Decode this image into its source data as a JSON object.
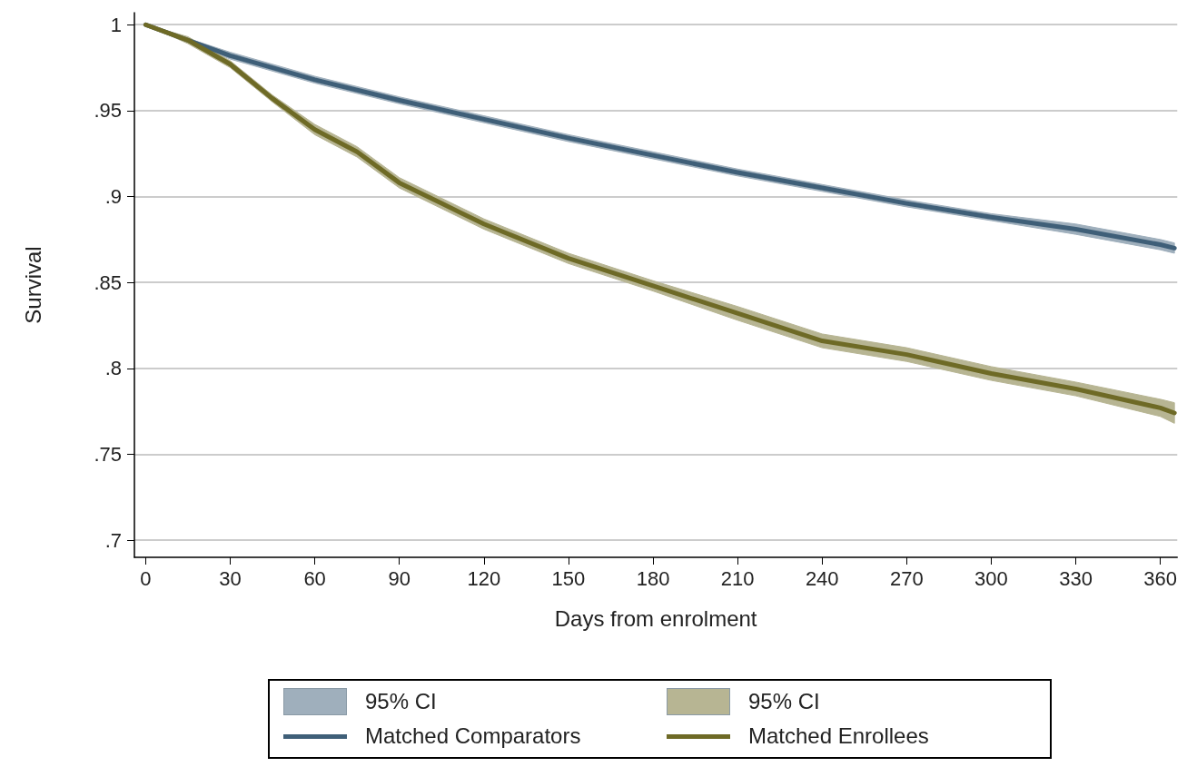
{
  "chart_data": {
    "type": "line",
    "xlabel": "Days from enrolment",
    "ylabel": "Survival",
    "xlim": [
      -4,
      366
    ],
    "xticks": [
      0,
      30,
      60,
      90,
      120,
      150,
      180,
      210,
      240,
      270,
      300,
      330,
      360
    ],
    "ylim": [
      0.69,
      1.007
    ],
    "yticks": [
      {
        "value": 0.7,
        "label": ".7"
      },
      {
        "value": 0.75,
        "label": ".75"
      },
      {
        "value": 0.8,
        "label": ".8"
      },
      {
        "value": 0.85,
        "label": ".85"
      },
      {
        "value": 0.9,
        "label": ".9"
      },
      {
        "value": 0.95,
        "label": ".95"
      },
      1
    ],
    "grid": "y",
    "legend": "bottom",
    "marker": "none",
    "line_style": "solid",
    "annotations": [
      "95% CI",
      "95% CI"
    ],
    "series": [
      {
        "name": "Matched Comparators",
        "color": "#3f5f78",
        "x": [
          0,
          30,
          60,
          90,
          120,
          150,
          180,
          210,
          240,
          270,
          300,
          330,
          360,
          365
        ],
        "values": [
          1,
          0.982,
          0.968,
          0.956,
          0.945,
          0.934,
          0.924,
          0.914,
          0.905,
          0.896,
          0.888,
          0.881,
          0.872,
          0.87
        ],
        "lower": [
          1,
          0.98,
          0.966,
          0.954,
          0.943,
          0.932,
          0.922,
          0.912,
          0.903,
          0.894,
          0.886,
          0.878,
          0.869,
          0.867
        ],
        "upper": [
          1,
          0.984,
          0.97,
          0.958,
          0.947,
          0.936,
          0.926,
          0.916,
          0.907,
          0.898,
          0.89,
          0.884,
          0.875,
          0.873
        ]
      },
      {
        "name": "Matched Enrollees",
        "color": "#6e6a26",
        "x": [
          0,
          15,
          30,
          45,
          60,
          75,
          90,
          105,
          120,
          150,
          180,
          210,
          240,
          270,
          300,
          330,
          360,
          365
        ],
        "values": [
          1,
          0.991,
          0.977,
          0.957,
          0.939,
          0.926,
          0.908,
          0.896,
          0.884,
          0.864,
          0.848,
          0.832,
          0.816,
          0.808,
          0.797,
          0.788,
          0.777,
          0.774
        ],
        "lower": [
          1,
          0.989,
          0.975,
          0.955,
          0.936,
          0.923,
          0.905,
          0.893,
          0.881,
          0.861,
          0.845,
          0.828,
          0.812,
          0.804,
          0.793,
          0.784,
          0.772,
          0.768
        ],
        "upper": [
          1,
          0.993,
          0.979,
          0.959,
          0.942,
          0.929,
          0.911,
          0.899,
          0.887,
          0.867,
          0.851,
          0.836,
          0.82,
          0.812,
          0.801,
          0.792,
          0.782,
          0.78
        ]
      }
    ]
  }
}
